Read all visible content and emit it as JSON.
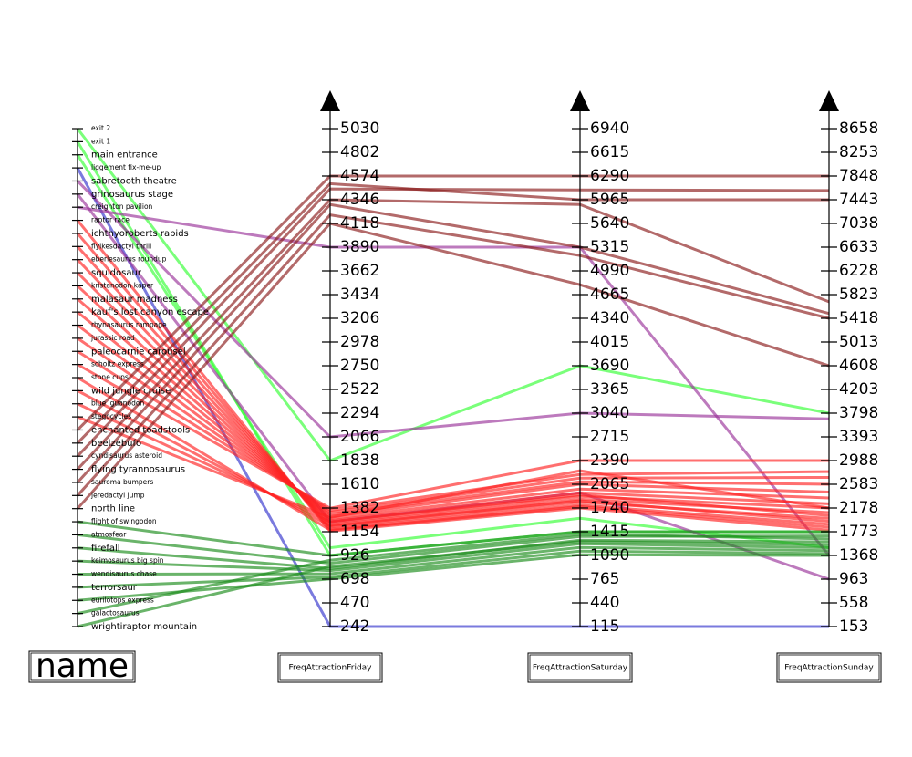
{
  "chart_data": {
    "type": "parallel",
    "category_label": "name",
    "categories": [
      "exit 2",
      "exit 1",
      "main entrance",
      "liggement fix-me-up",
      "sabretooth theatre",
      "grinosaurus stage",
      "creighton pavilion",
      "raptor race",
      "ichthyoroberts rapids",
      "flyikesdactyl thrill",
      "eberlesaurus roundup",
      "squidosaur",
      "kristanodon kaper",
      "malasaur madness",
      "kauf's lost canyon escape",
      "rhynasaurus rampage",
      "jurassic road",
      "paleocarnie carousel",
      "scholtz express",
      "stone cups",
      "wild jungle cruise",
      "blue iguanodon",
      "stegocycles",
      "enchanted toadstools",
      "beelzebufo",
      "cyndisaurus asteroid",
      "flying tyrannosaurus",
      "sauroma bumpers",
      "jeredactyl jump",
      "north line",
      "flight of swingodon",
      "atmosfear",
      "firefall",
      "keimosaurus big spin",
      "wendisaurus chase",
      "terrorsaur",
      "eurilotops express",
      "galactosaurus",
      "wrightiraptor mountain"
    ],
    "colors": [
      "#33ff33",
      "#33ff33",
      "#33ff33",
      "#3333cc",
      "#993399",
      "#993399",
      "#993399",
      "#ff2222",
      "#ff2222",
      "#ff2222",
      "#ff2222",
      "#ff2222",
      "#ff2222",
      "#ff2222",
      "#ff2222",
      "#ff2222",
      "#ff2222",
      "#ff2222",
      "#ff2222",
      "#ff2222",
      "#ff2222",
      "#ff2222",
      "#ff2222",
      "#8b1a1a",
      "#8b1a1a",
      "#8b1a1a",
      "#8b1a1a",
      "#8b1a1a",
      "#8b1a1a",
      "#8b1a1a",
      "#1a8c1a",
      "#1a8c1a",
      "#1a8c1a",
      "#1a8c1a",
      "#1a8c1a",
      "#1a8c1a",
      "#1a8c1a",
      "#1a8c1a",
      "#1a8c1a"
    ],
    "series": [
      {
        "name": "FreqAttractionFriday",
        "ylim": [
          242,
          5030
        ],
        "yticks": [
          242,
          470,
          698,
          926,
          1154,
          1382,
          1610,
          1838,
          2066,
          2294,
          2522,
          2750,
          2978,
          3206,
          3434,
          3662,
          3890,
          4118,
          4346,
          4574,
          4802,
          5030
        ],
        "values": [
          1838,
          926,
          1000,
          242,
          2066,
          1250,
          3890,
          1160,
          1180,
          1200,
          1220,
          1240,
          1260,
          1280,
          1300,
          1320,
          1340,
          1360,
          1380,
          1170,
          1210,
          1250,
          1290,
          4574,
          4500,
          4450,
          4346,
          4300,
          4200,
          4118,
          926,
          850,
          800,
          780,
          750,
          720,
          700,
          880,
          820
        ]
      },
      {
        "name": "FreqAttractionSaturday",
        "ylim": [
          115,
          6940
        ],
        "yticks": [
          115,
          440,
          765,
          1090,
          1415,
          1740,
          2065,
          2390,
          2715,
          3040,
          3365,
          3690,
          4015,
          4340,
          4665,
          4990,
          5315,
          5640,
          5965,
          6290,
          6615,
          6940
        ],
        "values": [
          3690,
          1415,
          1600,
          115,
          3040,
          1950,
          5315,
          1740,
          1780,
          1820,
          1860,
          1900,
          1950,
          2000,
          2065,
          2100,
          2150,
          2200,
          2390,
          1760,
          1840,
          1920,
          2250,
          6290,
          5965,
          6100,
          5900,
          5315,
          5200,
          4800,
          1415,
          1350,
          1300,
          1250,
          1200,
          1150,
          1100,
          1380,
          1280
        ]
      },
      {
        "name": "FreqAttractionSunday",
        "ylim": [
          153,
          8658
        ],
        "yticks": [
          153,
          558,
          963,
          1368,
          1773,
          2178,
          2583,
          2988,
          3393,
          3798,
          4203,
          4608,
          5013,
          5418,
          5823,
          6228,
          6633,
          7038,
          7443,
          7848,
          8253,
          8658
        ],
        "values": [
          3798,
          1773,
          1500,
          153,
          3700,
          963,
          1368,
          1800,
          1900,
          2000,
          2100,
          2178,
          2250,
          2350,
          2450,
          2583,
          2700,
          2800,
          2988,
          1850,
          1950,
          2050,
          2178,
          7848,
          7443,
          7600,
          5700,
          5500,
          5418,
          4608,
          1773,
          1700,
          1600,
          1500,
          1450,
          1400,
          1368,
          1650,
          1550
        ]
      }
    ]
  }
}
